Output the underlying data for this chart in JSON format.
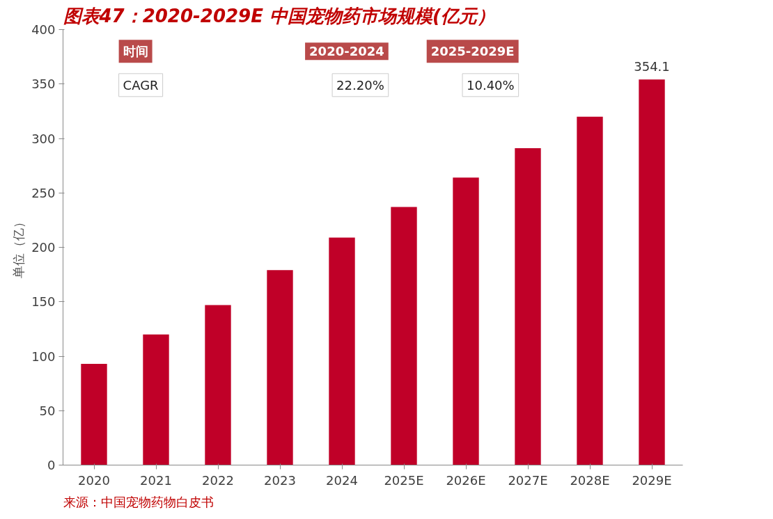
{
  "chart_data": {
    "type": "bar",
    "title": "图表47：2020-2029E 中国宠物药市场规模(亿元）",
    "ylabel": "单位（亿）",
    "categories": [
      "2020",
      "2021",
      "2022",
      "2023",
      "2024",
      "2025E",
      "2026E",
      "2027E",
      "2028E",
      "2029E"
    ],
    "series": [
      {
        "color": "#c00028",
        "values": [
          93,
          120,
          147,
          179,
          209,
          237,
          264,
          291,
          320,
          354.1
        ],
        "value_labels": [
          null,
          null,
          null,
          null,
          null,
          null,
          null,
          null,
          null,
          "354.1"
        ]
      }
    ],
    "ylim": [
      0,
      400
    ],
    "yticks": [
      0,
      50,
      100,
      150,
      200,
      250,
      300,
      350,
      400
    ],
    "grid": false,
    "annotations": [
      "时间",
      "2020-2024",
      "2025-2029E",
      "CAGR",
      "22.20%",
      "10.40%",
      "来源：中国宠物药物白皮书"
    ]
  }
}
